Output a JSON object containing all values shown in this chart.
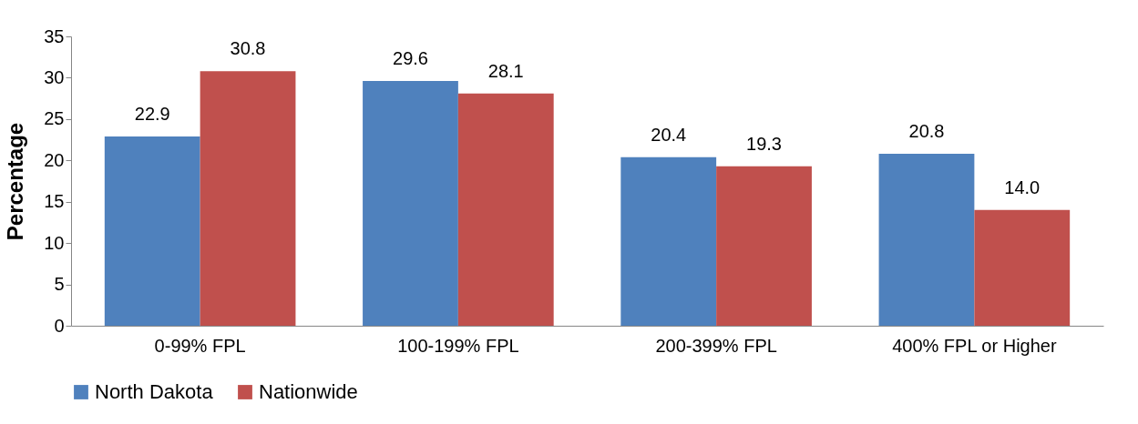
{
  "chart_data": {
    "type": "bar",
    "ylabel": "Percentage",
    "categories": [
      "0-99% FPL",
      "100-199% FPL",
      "200-399% FPL",
      "400% FPL or Higher"
    ],
    "series": [
      {
        "name": "North Dakota",
        "color": "#4f81bd",
        "values": [
          22.9,
          29.6,
          20.4,
          20.8
        ],
        "value_labels": [
          "22.9",
          "29.6",
          "20.4",
          "20.8"
        ]
      },
      {
        "name": "Nationwide",
        "color": "#c0504d",
        "values": [
          30.8,
          28.1,
          19.3,
          14.0
        ],
        "value_labels": [
          "30.8",
          "28.1",
          "19.3",
          "14.0"
        ]
      }
    ],
    "ylim": [
      0,
      35
    ],
    "yticks": [
      0,
      5,
      10,
      15,
      20,
      25,
      30,
      35
    ],
    "legend": "bottom"
  }
}
